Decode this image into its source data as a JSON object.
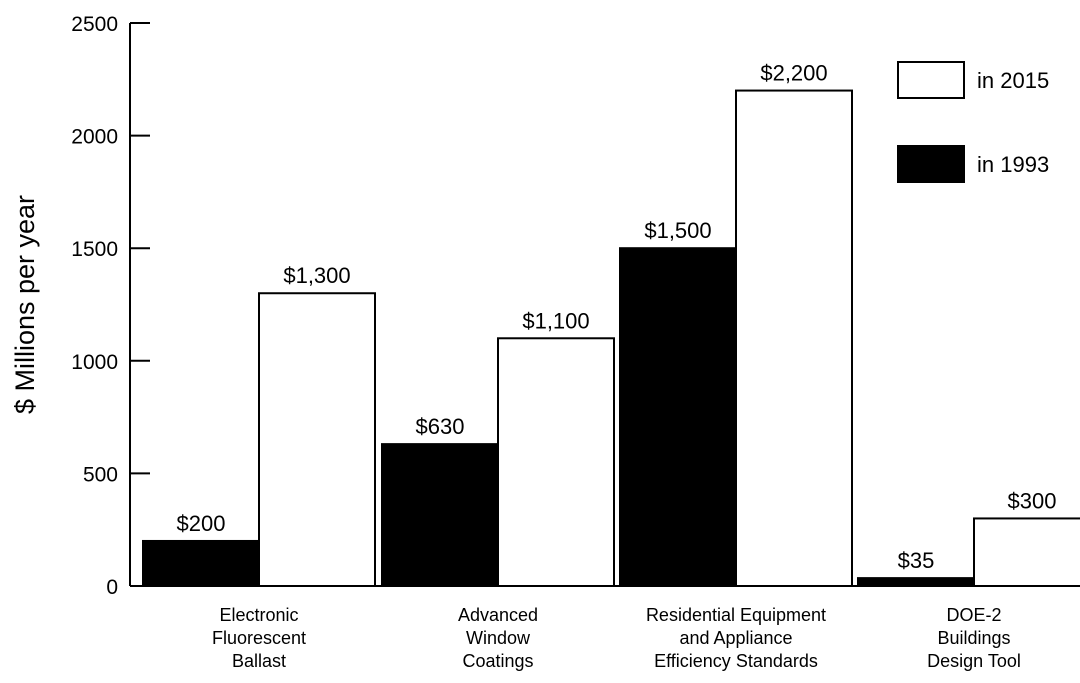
{
  "chart_data": {
    "type": "bar",
    "ylabel": "$ Millions per year",
    "ylim": [
      0,
      2500
    ],
    "yticks": [
      0,
      500,
      1000,
      1500,
      2000,
      2500
    ],
    "ytick_labels": [
      "0",
      "500",
      "1000",
      "1500",
      "2000",
      "2500"
    ],
    "grid": false,
    "legend_position": "top-right",
    "categories": [
      [
        "Electronic",
        "Fluorescent",
        "Ballast"
      ],
      [
        "Advanced",
        "Window",
        "Coatings"
      ],
      [
        "Residential Equipment",
        "and Appliance",
        "Efficiency Standards"
      ],
      [
        "DOE-2",
        "Buildings",
        "Design Tool"
      ]
    ],
    "series": [
      {
        "name": "in 1993",
        "color": "#000000",
        "values": [
          200,
          630,
          1500,
          35
        ],
        "labels": [
          "$200",
          "$630",
          "$1,500",
          "$35"
        ]
      },
      {
        "name": "in 2015",
        "color": "#ffffff",
        "values": [
          1300,
          1100,
          2200,
          300
        ],
        "labels": [
          "$1,300",
          "$1,100",
          "$2,200",
          "$300"
        ]
      }
    ],
    "legend_order": [
      1,
      0
    ]
  }
}
